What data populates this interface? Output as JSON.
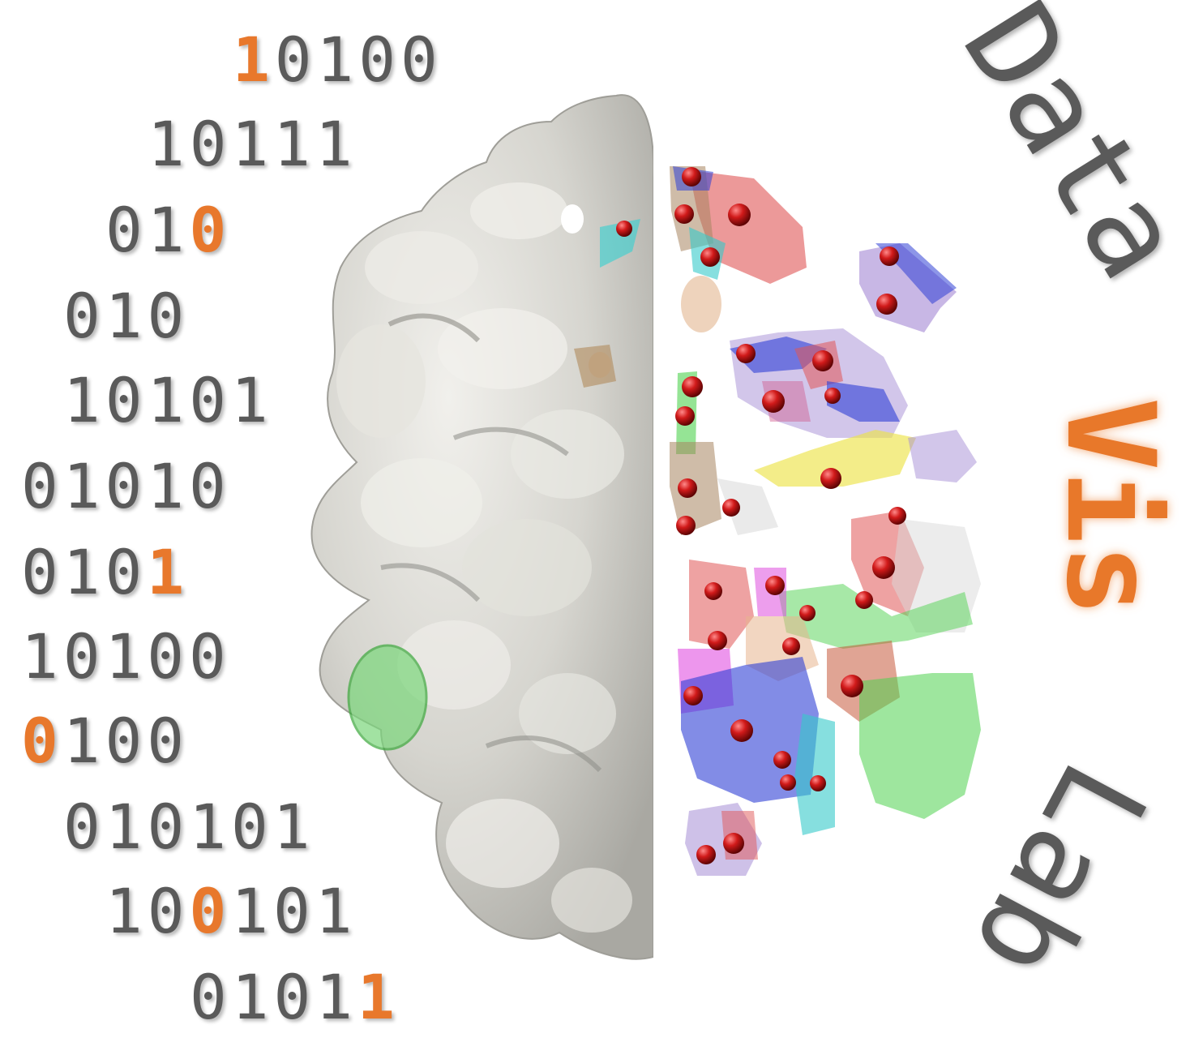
{
  "binary_lines": [
    {
      "before": "",
      "highlight": "1",
      "after": "0100"
    },
    {
      "before": "10111",
      "highlight": "",
      "after": ""
    },
    {
      "before": "01",
      "highlight": "0",
      "after": ""
    },
    {
      "before": "010",
      "highlight": "",
      "after": ""
    },
    {
      "before": "10101",
      "highlight": "",
      "after": ""
    },
    {
      "before": "01010",
      "highlight": "",
      "after": ""
    },
    {
      "before": "010",
      "highlight": "1",
      "after": ""
    },
    {
      "before": "10100",
      "highlight": "",
      "after": ""
    },
    {
      "before": "",
      "highlight": "0",
      "after": "100"
    },
    {
      "before": "010101",
      "highlight": "",
      "after": ""
    },
    {
      "before": "10",
      "highlight": "0",
      "after": "101"
    },
    {
      "before": "0101",
      "highlight": "1",
      "after": ""
    }
  ],
  "brand": {
    "word1": "Data",
    "word2": "Vis",
    "word3": "Lab"
  },
  "colors": {
    "text_gray": "#5a5a5a",
    "accent_orange": "#e8782c",
    "surface_gray": "#d9d8d3",
    "marker_red": "#d11a1a"
  }
}
